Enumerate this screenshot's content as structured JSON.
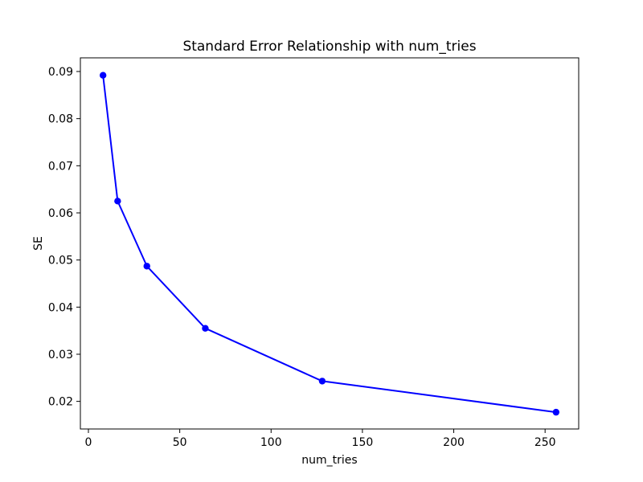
{
  "figure": {
    "background": "#ffffff"
  },
  "chart_data": {
    "type": "line",
    "title": "Standard Error Relationship with num_tries",
    "xlabel": "num_tries",
    "ylabel": "SE",
    "x": [
      8,
      16,
      32,
      64,
      128,
      256
    ],
    "y": [
      0.0892,
      0.0625,
      0.0487,
      0.0355,
      0.0243,
      0.0177
    ],
    "series": [
      {
        "name": "SE",
        "x": [
          8,
          16,
          32,
          64,
          128,
          256
        ],
        "y": [
          0.0892,
          0.0625,
          0.0487,
          0.0355,
          0.0243,
          0.0177
        ]
      }
    ],
    "xlim": [
      -4.4,
      268.4
    ],
    "ylim": [
      0.01414,
      0.0929
    ],
    "xticks": [
      0,
      50,
      100,
      150,
      200,
      250
    ],
    "yticks": [
      0.02,
      0.03,
      0.04,
      0.05,
      0.06,
      0.07,
      0.08,
      0.09
    ],
    "xtick_labels": [
      "0",
      "50",
      "100",
      "150",
      "200",
      "250"
    ],
    "ytick_labels": [
      "0.02",
      "0.03",
      "0.04",
      "0.05",
      "0.06",
      "0.07",
      "0.08",
      "0.09"
    ],
    "line_color": "#0000ff",
    "marker": "o",
    "marker_color": "#0000ff",
    "spine_color": "#000000",
    "grid": false,
    "legend": null
  }
}
